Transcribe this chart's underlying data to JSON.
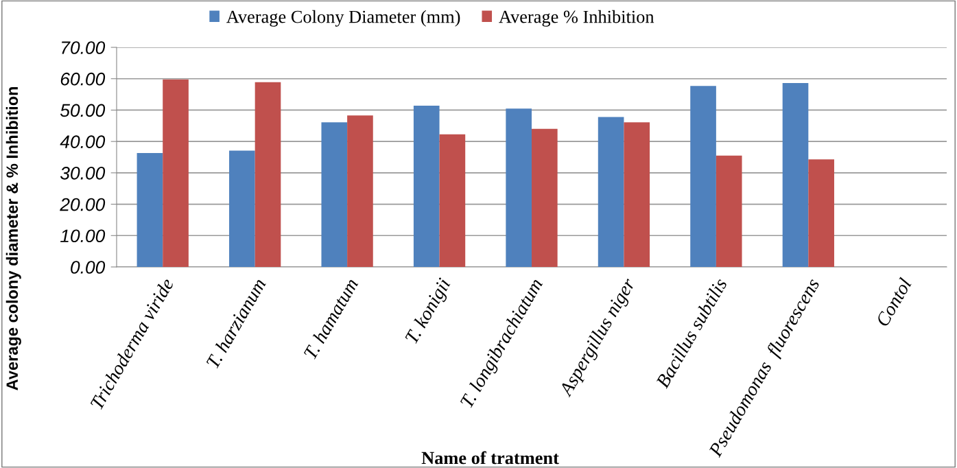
{
  "chart_data": {
    "type": "bar",
    "xlabel": "Name of tratment",
    "ylabel": "Average colony diameter & % Inhibition",
    "categories": [
      "Trichoderma viride",
      "T. harzianum",
      "T. hamatum",
      "T. konigii",
      "T. longibrachiatum",
      "Aspergillus niger",
      "Bacillus subtilis",
      "Pseudomonas  fluorescens",
      "Contol"
    ],
    "series": [
      {
        "name": "Average Colony Diameter (mm)",
        "color": "#4f81bd",
        "values": [
          36.3,
          37.1,
          46.1,
          51.4,
          50.5,
          47.8,
          57.7,
          58.6,
          0
        ]
      },
      {
        "name": "Average % Inhibition",
        "color": "#c0504d",
        "values": [
          59.8,
          58.9,
          48.3,
          42.3,
          44.0,
          46.1,
          35.5,
          34.3,
          0
        ]
      }
    ],
    "ylim": [
      0,
      70
    ],
    "yticks": [
      {
        "value": 0,
        "label": "0.00"
      },
      {
        "value": 10,
        "label": "10.00"
      },
      {
        "value": 20,
        "label": "20.00"
      },
      {
        "value": 30,
        "label": "30.00"
      },
      {
        "value": 40,
        "label": "40.00"
      },
      {
        "value": 50,
        "label": "50.00"
      },
      {
        "value": 60,
        "label": "60.00"
      },
      {
        "value": 70,
        "label": "70.00"
      }
    ],
    "grid": "y",
    "legend": "top"
  }
}
